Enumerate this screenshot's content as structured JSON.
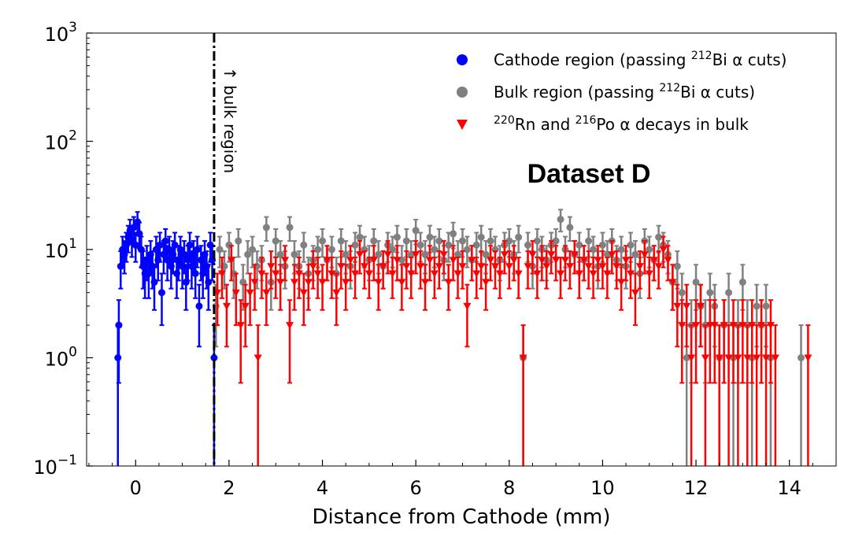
{
  "chart_data": {
    "type": "scatter",
    "xlabel": "Distance from Cathode (mm)",
    "ylabel": "",
    "xlim": [
      -1.05,
      15.0
    ],
    "ylim": [
      0.1,
      1000
    ],
    "yscale": "log",
    "x_ticks": [
      0,
      2,
      4,
      6,
      8,
      10,
      12,
      14
    ],
    "x_tick_labels": [
      "0",
      "2",
      "4",
      "6",
      "8",
      "10",
      "12",
      "14"
    ],
    "y_ticks": [
      0.1,
      1,
      10,
      100,
      1000
    ],
    "y_tick_labels": [
      {
        "base": "10",
        "exp": "−1"
      },
      {
        "base": "10",
        "exp": "0"
      },
      {
        "base": "10",
        "exp": "1"
      },
      {
        "base": "10",
        "exp": "2"
      },
      {
        "base": "10",
        "exp": "3"
      }
    ],
    "legend_position": "top-right",
    "cut_line": {
      "x": 1.68,
      "label": "↑ bulk region"
    },
    "annotation": "Dataset D",
    "series": [
      {
        "name": "Cathode region (passing 212Bi α cuts)",
        "legend_pre": "Cathode region (passing ",
        "legend_sup": "212",
        "legend_post": "Bi α cuts)",
        "color": "#0000ff",
        "marker": "circle",
        "points": [
          [
            -0.38,
            1
          ],
          [
            -0.36,
            2
          ],
          [
            -0.32,
            7
          ],
          [
            -0.28,
            10
          ],
          [
            -0.24,
            9
          ],
          [
            -0.2,
            11
          ],
          [
            -0.16,
            13
          ],
          [
            -0.12,
            15
          ],
          [
            -0.08,
            12
          ],
          [
            -0.04,
            16
          ],
          [
            0.0,
            11
          ],
          [
            0.04,
            18
          ],
          [
            0.08,
            14
          ],
          [
            0.12,
            10
          ],
          [
            0.16,
            7
          ],
          [
            0.2,
            6
          ],
          [
            0.24,
            8
          ],
          [
            0.28,
            6
          ],
          [
            0.32,
            9
          ],
          [
            0.36,
            7
          ],
          [
            0.4,
            5
          ],
          [
            0.44,
            10
          ],
          [
            0.48,
            8
          ],
          [
            0.52,
            11
          ],
          [
            0.56,
            4
          ],
          [
            0.6,
            9
          ],
          [
            0.64,
            12
          ],
          [
            0.68,
            8
          ],
          [
            0.72,
            10
          ],
          [
            0.76,
            7
          ],
          [
            0.8,
            9
          ],
          [
            0.84,
            11
          ],
          [
            0.88,
            6
          ],
          [
            0.92,
            8
          ],
          [
            0.96,
            10
          ],
          [
            1.0,
            7
          ],
          [
            1.04,
            9
          ],
          [
            1.08,
            5
          ],
          [
            1.12,
            8
          ],
          [
            1.16,
            11
          ],
          [
            1.2,
            7
          ],
          [
            1.24,
            9
          ],
          [
            1.28,
            6
          ],
          [
            1.32,
            10
          ],
          [
            1.36,
            3
          ],
          [
            1.4,
            8
          ],
          [
            1.44,
            6
          ],
          [
            1.48,
            9
          ],
          [
            1.52,
            7
          ],
          [
            1.56,
            5
          ],
          [
            1.6,
            11
          ],
          [
            1.64,
            8
          ],
          [
            1.68,
            1
          ]
        ]
      },
      {
        "name": "Bulk region (passing 212Bi α cuts)",
        "legend_pre": "Bulk region (passing ",
        "legend_sup": "212",
        "legend_post": "Bi α cuts)",
        "color": "#808080",
        "marker": "circle",
        "points": [
          [
            1.72,
            3
          ],
          [
            1.8,
            10
          ],
          [
            1.9,
            7
          ],
          [
            2.0,
            11
          ],
          [
            2.1,
            6
          ],
          [
            2.2,
            12
          ],
          [
            2.3,
            5
          ],
          [
            2.4,
            9
          ],
          [
            2.5,
            10
          ],
          [
            2.6,
            7
          ],
          [
            2.7,
            8
          ],
          [
            2.8,
            16
          ],
          [
            2.9,
            5
          ],
          [
            3.0,
            12
          ],
          [
            3.1,
            9
          ],
          [
            3.2,
            7
          ],
          [
            3.3,
            16
          ],
          [
            3.4,
            9
          ],
          [
            3.5,
            7
          ],
          [
            3.6,
            11
          ],
          [
            3.7,
            6
          ],
          [
            3.8,
            8
          ],
          [
            3.9,
            10
          ],
          [
            4.0,
            12
          ],
          [
            4.1,
            8
          ],
          [
            4.2,
            10
          ],
          [
            4.3,
            6
          ],
          [
            4.4,
            12
          ],
          [
            4.5,
            9
          ],
          [
            4.6,
            7
          ],
          [
            4.7,
            11
          ],
          [
            4.8,
            13
          ],
          [
            4.9,
            10
          ],
          [
            5.0,
            8
          ],
          [
            5.1,
            12
          ],
          [
            5.2,
            9
          ],
          [
            5.3,
            7
          ],
          [
            5.4,
            11
          ],
          [
            5.5,
            10
          ],
          [
            5.6,
            13
          ],
          [
            5.7,
            8
          ],
          [
            5.8,
            12
          ],
          [
            5.9,
            9
          ],
          [
            6.0,
            15
          ],
          [
            6.1,
            11
          ],
          [
            6.2,
            9
          ],
          [
            6.3,
            13
          ],
          [
            6.4,
            10
          ],
          [
            6.5,
            12
          ],
          [
            6.6,
            8
          ],
          [
            6.7,
            11
          ],
          [
            6.8,
            14
          ],
          [
            6.9,
            9
          ],
          [
            7.0,
            12
          ],
          [
            7.1,
            10
          ],
          [
            7.2,
            8
          ],
          [
            7.3,
            11
          ],
          [
            7.4,
            13
          ],
          [
            7.5,
            9
          ],
          [
            7.6,
            12
          ],
          [
            7.7,
            10
          ],
          [
            7.8,
            8
          ],
          [
            7.9,
            11
          ],
          [
            8.0,
            12
          ],
          [
            8.1,
            9
          ],
          [
            8.2,
            13
          ],
          [
            8.3,
            1
          ],
          [
            8.4,
            11
          ],
          [
            8.5,
            7
          ],
          [
            8.6,
            12
          ],
          [
            8.7,
            10
          ],
          [
            8.8,
            8
          ],
          [
            8.9,
            11
          ],
          [
            9.0,
            12
          ],
          [
            9.1,
            19
          ],
          [
            9.2,
            10
          ],
          [
            9.3,
            16
          ],
          [
            9.4,
            9
          ],
          [
            9.5,
            11
          ],
          [
            9.6,
            8
          ],
          [
            9.7,
            12
          ],
          [
            9.8,
            10
          ],
          [
            9.9,
            7
          ],
          [
            10.0,
            11
          ],
          [
            10.1,
            9
          ],
          [
            10.2,
            12
          ],
          [
            10.3,
            8
          ],
          [
            10.4,
            10
          ],
          [
            10.5,
            7
          ],
          [
            10.6,
            11
          ],
          [
            10.7,
            9
          ],
          [
            10.8,
            6
          ],
          [
            10.9,
            12
          ],
          [
            11.0,
            10
          ],
          [
            11.1,
            8
          ],
          [
            11.2,
            13
          ],
          [
            11.3,
            11
          ],
          [
            11.4,
            9
          ],
          [
            11.5,
            5
          ],
          [
            11.6,
            7
          ],
          [
            11.7,
            4
          ],
          [
            11.8,
            1
          ],
          [
            11.9,
            2
          ],
          [
            12.0,
            5
          ],
          [
            12.1,
            3
          ],
          [
            12.2,
            2
          ],
          [
            12.3,
            4
          ],
          [
            12.4,
            3
          ],
          [
            12.5,
            1
          ],
          [
            12.6,
            2
          ],
          [
            12.7,
            4
          ],
          [
            12.8,
            1
          ],
          [
            12.9,
            2
          ],
          [
            13.0,
            5
          ],
          [
            13.1,
            2
          ],
          [
            13.2,
            1
          ],
          [
            13.3,
            3
          ],
          [
            13.4,
            2
          ],
          [
            13.5,
            3
          ],
          [
            13.6,
            1
          ],
          [
            14.25,
            1
          ]
        ]
      },
      {
        "name": "220Rn and 216Po α decays in bulk",
        "legend_pre": "",
        "legend_sup": "220",
        "legend_post": "Rn and ",
        "legend_sup2": "216",
        "legend_post2": "Po α decays in bulk",
        "color": "#ff0000",
        "marker": "triangle-down",
        "points": [
          [
            1.75,
            4
          ],
          [
            1.85,
            6
          ],
          [
            1.95,
            3
          ],
          [
            2.05,
            8
          ],
          [
            2.15,
            4
          ],
          [
            2.25,
            2
          ],
          [
            2.35,
            3
          ],
          [
            2.45,
            4
          ],
          [
            2.55,
            5
          ],
          [
            2.62,
            1
          ],
          [
            2.7,
            6
          ],
          [
            2.8,
            4
          ],
          [
            2.9,
            7
          ],
          [
            3.0,
            6
          ],
          [
            3.1,
            5
          ],
          [
            3.2,
            8
          ],
          [
            3.3,
            2
          ],
          [
            3.4,
            5
          ],
          [
            3.5,
            6
          ],
          [
            3.6,
            4
          ],
          [
            3.7,
            5
          ],
          [
            3.8,
            7
          ],
          [
            3.9,
            6
          ],
          [
            4.0,
            5
          ],
          [
            4.1,
            8
          ],
          [
            4.2,
            6
          ],
          [
            4.3,
            4
          ],
          [
            4.4,
            7
          ],
          [
            4.5,
            5
          ],
          [
            4.6,
            8
          ],
          [
            4.7,
            6
          ],
          [
            4.8,
            9
          ],
          [
            4.9,
            7
          ],
          [
            5.0,
            6
          ],
          [
            5.1,
            8
          ],
          [
            5.2,
            5
          ],
          [
            5.3,
            7
          ],
          [
            5.4,
            9
          ],
          [
            5.5,
            6
          ],
          [
            5.6,
            8
          ],
          [
            5.7,
            5
          ],
          [
            5.8,
            7
          ],
          [
            5.9,
            6
          ],
          [
            6.0,
            9
          ],
          [
            6.1,
            7
          ],
          [
            6.2,
            5
          ],
          [
            6.3,
            8
          ],
          [
            6.4,
            6
          ],
          [
            6.5,
            7
          ],
          [
            6.6,
            9
          ],
          [
            6.7,
            5
          ],
          [
            6.8,
            8
          ],
          [
            6.9,
            6
          ],
          [
            7.0,
            7
          ],
          [
            7.1,
            3
          ],
          [
            7.2,
            8
          ],
          [
            7.3,
            6
          ],
          [
            7.4,
            7
          ],
          [
            7.5,
            5
          ],
          [
            7.6,
            8
          ],
          [
            7.7,
            7
          ],
          [
            7.8,
            6
          ],
          [
            7.9,
            9
          ],
          [
            8.0,
            7
          ],
          [
            8.1,
            8
          ],
          [
            8.2,
            6
          ],
          [
            8.3,
            1
          ],
          [
            8.4,
            7
          ],
          [
            8.5,
            9
          ],
          [
            8.6,
            6
          ],
          [
            8.7,
            8
          ],
          [
            8.8,
            7
          ],
          [
            8.9,
            9
          ],
          [
            9.0,
            8
          ],
          [
            9.1,
            6
          ],
          [
            9.2,
            8
          ],
          [
            9.3,
            7
          ],
          [
            9.4,
            9
          ],
          [
            9.5,
            6
          ],
          [
            9.6,
            8
          ],
          [
            9.7,
            7
          ],
          [
            9.8,
            6
          ],
          [
            9.9,
            8
          ],
          [
            10.0,
            7
          ],
          [
            10.1,
            6
          ],
          [
            10.2,
            9
          ],
          [
            10.3,
            7
          ],
          [
            10.4,
            5
          ],
          [
            10.5,
            8
          ],
          [
            10.6,
            6
          ],
          [
            10.7,
            4
          ],
          [
            10.8,
            7
          ],
          [
            10.9,
            9
          ],
          [
            11.0,
            6
          ],
          [
            11.1,
            8
          ],
          [
            11.2,
            7
          ],
          [
            11.3,
            10
          ],
          [
            11.4,
            8
          ],
          [
            11.5,
            5
          ],
          [
            11.6,
            3
          ],
          [
            11.7,
            2
          ],
          [
            11.8,
            3
          ],
          [
            11.9,
            1
          ],
          [
            12.0,
            2
          ],
          [
            12.1,
            3
          ],
          [
            12.2,
            1
          ],
          [
            12.3,
            2
          ],
          [
            12.4,
            2
          ],
          [
            12.5,
            1
          ],
          [
            12.6,
            2
          ],
          [
            12.7,
            1
          ],
          [
            12.8,
            2
          ],
          [
            12.9,
            1
          ],
          [
            13.0,
            2
          ],
          [
            13.1,
            1
          ],
          [
            13.2,
            2
          ],
          [
            13.3,
            1
          ],
          [
            13.4,
            2
          ],
          [
            13.5,
            1
          ],
          [
            13.6,
            2
          ],
          [
            13.7,
            1
          ],
          [
            14.4,
            1
          ]
        ]
      }
    ]
  }
}
